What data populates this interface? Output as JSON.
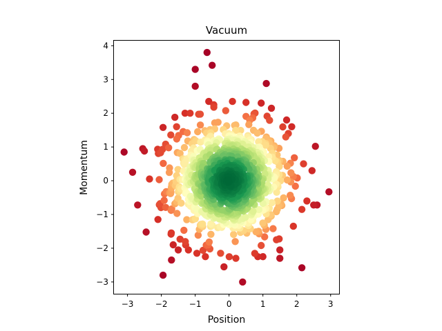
{
  "chart_data": {
    "type": "scatter",
    "title": "Vacuum",
    "xlabel": "Position",
    "ylabel": "Momentum",
    "xlim": [
      -3.4,
      3.25
    ],
    "ylim": [
      -3.35,
      4.15
    ],
    "xticks": [
      -3,
      -2,
      -1,
      0,
      1,
      2,
      3
    ],
    "yticks": [
      -3,
      -2,
      -1,
      0,
      1,
      2,
      3,
      4
    ],
    "xtick_labels": [
      "−3",
      "−2",
      "−1",
      "0",
      "1",
      "2",
      "3"
    ],
    "ytick_labels": [
      "−3",
      "−2",
      "−1",
      "0",
      "1",
      "2",
      "3",
      "4"
    ],
    "grid": false,
    "legend": "none",
    "colormap": "RdYlGn",
    "color_encoding": "point density (green = dense center, red = sparse outskirts)",
    "colors": {
      "low_density": "#a50026",
      "mid_density": "#ffffbf",
      "high_density": "#006837"
    },
    "point_count_approx": 1000,
    "outer_points": [
      [
        -0.65,
        3.8
      ],
      [
        -1.0,
        3.3
      ],
      [
        -0.5,
        3.42
      ],
      [
        -1.0,
        2.8
      ],
      [
        1.1,
        2.88
      ],
      [
        -0.6,
        2.35
      ],
      [
        -0.45,
        2.25
      ],
      [
        -0.45,
        2.18
      ],
      [
        0.1,
        2.35
      ],
      [
        0.5,
        2.32
      ],
      [
        0.95,
        2.3
      ],
      [
        1.25,
        2.15
      ],
      [
        -1.3,
        2.0
      ],
      [
        -1.15,
        2.0
      ],
      [
        -0.9,
        1.97
      ],
      [
        -1.6,
        1.88
      ],
      [
        -1.95,
        1.58
      ],
      [
        -1.55,
        1.6
      ],
      [
        1.7,
        1.8
      ],
      [
        1.85,
        1.6
      ],
      [
        1.75,
        1.4
      ],
      [
        -3.1,
        0.85
      ],
      [
        -2.55,
        0.95
      ],
      [
        -2.5,
        0.88
      ],
      [
        -2.85,
        0.25
      ],
      [
        2.55,
        1.02
      ],
      [
        2.45,
        0.3
      ],
      [
        2.2,
        0.5
      ],
      [
        -2.35,
        0.05
      ],
      [
        -2.7,
        -0.72
      ],
      [
        2.95,
        -0.33
      ],
      [
        2.5,
        -0.72
      ],
      [
        2.6,
        -0.72
      ],
      [
        2.15,
        -0.85
      ],
      [
        2.3,
        -0.6
      ],
      [
        -2.1,
        -1.15
      ],
      [
        -2.45,
        -1.52
      ],
      [
        1.9,
        -1.35
      ],
      [
        -1.65,
        -1.9
      ],
      [
        -1.7,
        -2.35
      ],
      [
        -1.5,
        -2.05
      ],
      [
        -1.95,
        -2.8
      ],
      [
        1.4,
        -1.75
      ],
      [
        1.5,
        -2.05
      ],
      [
        0.95,
        -1.92
      ],
      [
        0.85,
        -2.25
      ],
      [
        1.0,
        -2.25
      ],
      [
        1.5,
        -2.3
      ],
      [
        0.2,
        -2.3
      ],
      [
        -0.15,
        -2.55
      ],
      [
        0.4,
        -3.0
      ],
      [
        2.15,
        -2.58
      ],
      [
        -0.25,
        -2.15
      ],
      [
        -0.95,
        -2.15
      ],
      [
        -0.7,
        -2.25
      ],
      [
        -1.2,
        -2.05
      ],
      [
        1.3,
        -1.42
      ]
    ]
  }
}
